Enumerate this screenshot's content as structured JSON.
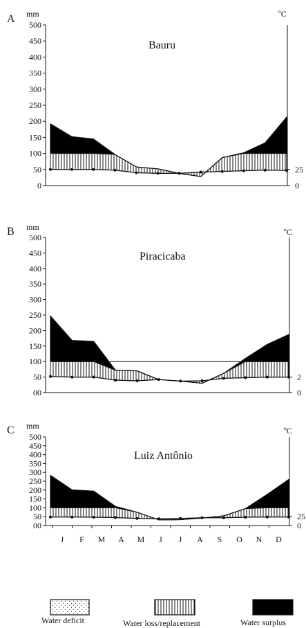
{
  "months": [
    "J",
    "F",
    "M",
    "A",
    "M",
    "J",
    "J",
    "A",
    "S",
    "O",
    "N",
    "D"
  ],
  "unit_left": "mm",
  "unit_right": "ºC",
  "panels": [
    {
      "letter": "A",
      "station": "Bauru",
      "unit_right": "ºC",
      "y_ticks": [
        "500",
        "450",
        "400",
        "350",
        "300",
        "250",
        "200",
        "150",
        "100",
        "50",
        "0"
      ],
      "right_ticks": [
        "25",
        "0"
      ],
      "show_month_labels": false
    },
    {
      "letter": "B",
      "station": "Piracicaba",
      "unit_right": "ºC",
      "y_ticks": [
        "500",
        "450",
        "400",
        "350",
        "300",
        "250",
        "200",
        "150",
        "100",
        "50",
        "00"
      ],
      "right_ticks": [
        "2",
        "0"
      ],
      "show_month_labels": false
    },
    {
      "letter": "C",
      "station": "Luiz Antônio",
      "unit_right": "ºC",
      "y_ticks": [
        "500",
        "450",
        "400",
        "350",
        "300",
        "250",
        "200",
        "150",
        "100",
        "50",
        "00"
      ],
      "right_ticks": [
        "25",
        "0"
      ],
      "show_month_labels": true
    }
  ],
  "legend": {
    "deficit": "Water deficit",
    "loss": "Water loss/replacement",
    "surplus": "Water surplus"
  },
  "chart_data": [
    {
      "type": "area",
      "title": "Bauru",
      "categories": [
        "J",
        "F",
        "M",
        "A",
        "M",
        "J",
        "J",
        "A",
        "S",
        "O",
        "N",
        "D"
      ],
      "ylim": [
        0,
        500
      ],
      "series": [
        {
          "name": "",
          "values": [
            192,
            152,
            145,
            97,
            58,
            52,
            38,
            28,
            87,
            102,
            133,
            213
          ]
        },
        {
          "name": "",
          "values": [
            100,
            100,
            100,
            97,
            58,
            52,
            38,
            28,
            87,
            100,
            100,
            100
          ]
        },
        {
          "name": "",
          "values": [
            50,
            50,
            50,
            48,
            40,
            38,
            38,
            42,
            44,
            46,
            48,
            47
          ]
        }
      ]
    },
    {
      "type": "area",
      "title": "Piracicaba",
      "categories": [
        "J",
        "F",
        "M",
        "A",
        "M",
        "J",
        "J",
        "A",
        "S",
        "O",
        "N",
        "D"
      ],
      "ylim": [
        0,
        500
      ],
      "series": [
        {
          "name": "",
          "values": [
            247,
            168,
            165,
            72,
            70,
            42,
            37,
            30,
            62,
            110,
            155,
            187
          ]
        },
        {
          "name": "",
          "values": [
            100,
            100,
            100,
            72,
            70,
            42,
            37,
            30,
            62,
            100,
            100,
            100
          ]
        },
        {
          "name": "",
          "values": [
            52,
            50,
            50,
            40,
            38,
            42,
            37,
            38,
            46,
            48,
            50,
            50
          ]
        }
      ]
    },
    {
      "type": "area",
      "title": "Luiz Antônio",
      "categories": [
        "J",
        "F",
        "M",
        "A",
        "M",
        "J",
        "J",
        "A",
        "S",
        "O",
        "N",
        "D"
      ],
      "ylim": [
        0,
        500
      ],
      "series": [
        {
          "name": "",
          "values": [
            283,
            201,
            194,
            108,
            75,
            32,
            33,
            42,
            55,
            95,
            175,
            260
          ]
        },
        {
          "name": "",
          "values": [
            100,
            100,
            100,
            100,
            75,
            32,
            33,
            42,
            55,
            95,
            100,
            100
          ]
        },
        {
          "name": "",
          "values": [
            48,
            48,
            47,
            45,
            40,
            38,
            40,
            44,
            44,
            47,
            48,
            48
          ]
        }
      ]
    }
  ]
}
